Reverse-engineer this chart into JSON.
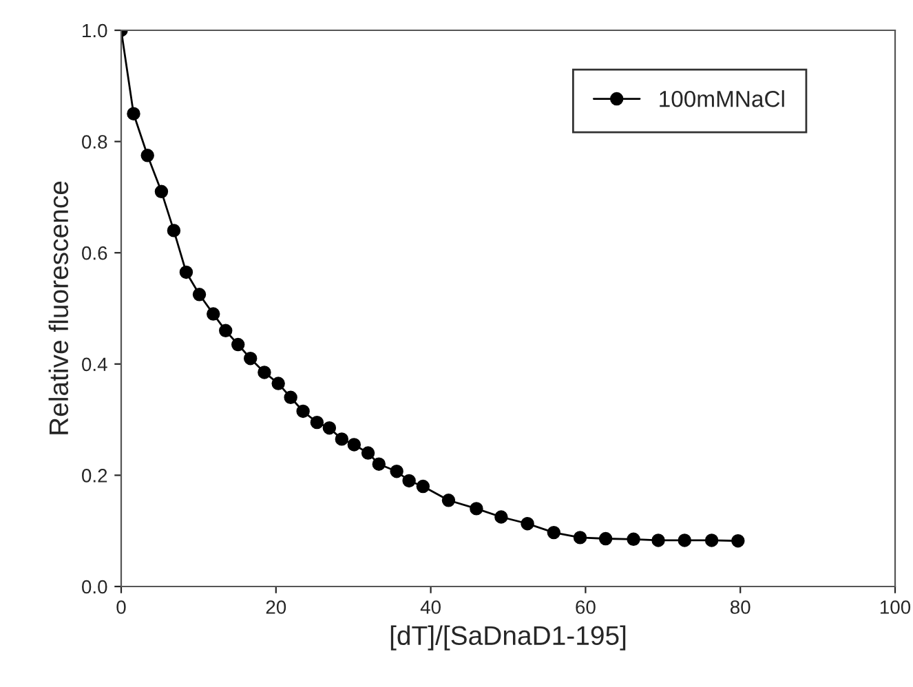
{
  "chart_data": {
    "type": "line",
    "xlabel": "[dT]/[SaDnaD1-195]",
    "ylabel": "Relative fluorescence",
    "x": [
      0,
      1.6,
      3.4,
      5.2,
      6.8,
      8.4,
      10.1,
      11.9,
      13.5,
      15.1,
      16.7,
      18.5,
      20.3,
      21.9,
      23.5,
      25.3,
      26.9,
      28.5,
      30.1,
      31.9,
      33.3,
      35.6,
      37.2,
      39,
      42.3,
      45.9,
      49.1,
      52.5,
      55.9,
      59.3,
      62.6,
      66.2,
      69.4,
      72.8,
      76.3,
      79.7
    ],
    "series": [
      {
        "name": "100mMNaCl",
        "color": "#000000",
        "values": [
          1.0,
          0.85,
          0.775,
          0.71,
          0.64,
          0.565,
          0.525,
          0.49,
          0.46,
          0.435,
          0.41,
          0.385,
          0.365,
          0.34,
          0.315,
          0.295,
          0.285,
          0.265,
          0.255,
          0.24,
          0.22,
          0.207,
          0.19,
          0.18,
          0.155,
          0.14,
          0.125,
          0.113,
          0.097,
          0.088,
          0.086,
          0.085,
          0.083,
          0.083,
          0.083,
          0.082
        ]
      }
    ],
    "xlim": [
      0,
      100
    ],
    "xticks": [
      0,
      20,
      40,
      60,
      80,
      100
    ],
    "ylim": [
      0,
      1
    ],
    "yticks": [
      {
        "value": 0,
        "label": "0.0"
      },
      {
        "value": 0.2,
        "label": "0.2"
      },
      {
        "value": 0.4,
        "label": "0.4"
      },
      {
        "value": 0.6,
        "label": "0.6"
      },
      {
        "value": 0.8,
        "label": "0.8"
      },
      {
        "value": 1,
        "label": "1.0"
      }
    ],
    "marker": "circle",
    "line_style": "solid",
    "grid": false,
    "legend": "top right"
  }
}
